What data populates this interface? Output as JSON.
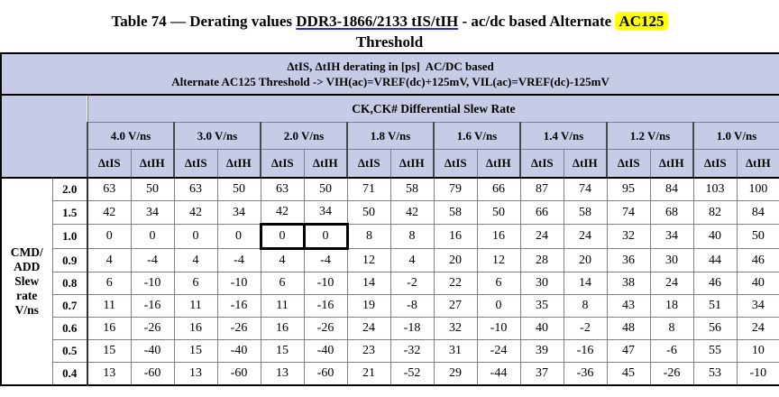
{
  "title": {
    "prefix": "Table 74 — Derating values ",
    "link": "DDR3-1866/2133 tIS/tIH",
    "middle": " - ac/dc based Alternate ",
    "highlight": "AC125",
    "line2": "Threshold"
  },
  "banner": {
    "line1": "ΔtIS, ΔtIH derating in [ps]  AC/DC based",
    "line2": "Alternate AC125 Threshold -> VIH(ac)=VREF(dc)+125mV, VIL(ac)=VREF(dc)-125mV"
  },
  "table": {
    "ck_header": "CK,CK# Differential Slew Rate",
    "slew_groups": [
      "4.0 V/ns",
      "3.0 V/ns",
      "2.0 V/ns",
      "1.8 V/ns",
      "1.6 V/ns",
      "1.4 V/ns",
      "1.2 V/ns",
      "1.0 V/ns"
    ],
    "sub_headers": [
      "ΔtIS",
      "ΔtIH"
    ],
    "row_header_lines": [
      "CMD/",
      "ADD",
      "Slew",
      "rate",
      "V/ns"
    ],
    "rows": [
      {
        "label": "2.0",
        "values": [
          63,
          50,
          63,
          50,
          63,
          50,
          71,
          58,
          79,
          66,
          87,
          74,
          95,
          84,
          103,
          100
        ]
      },
      {
        "label": "1.5",
        "values": [
          42,
          34,
          42,
          34,
          42,
          34,
          50,
          42,
          58,
          50,
          66,
          58,
          74,
          68,
          82,
          84
        ]
      },
      {
        "label": "1.0",
        "values": [
          0,
          0,
          0,
          0,
          0,
          0,
          8,
          8,
          16,
          16,
          24,
          24,
          32,
          34,
          40,
          50
        ],
        "boxed_columns": [
          4,
          5
        ]
      },
      {
        "label": "0.9",
        "values": [
          4,
          -4,
          4,
          -4,
          4,
          -4,
          12,
          4,
          20,
          12,
          28,
          20,
          36,
          30,
          44,
          46
        ]
      },
      {
        "label": "0.8",
        "values": [
          6,
          -10,
          6,
          -10,
          6,
          -10,
          14,
          -2,
          22,
          6,
          30,
          14,
          38,
          24,
          46,
          40
        ]
      },
      {
        "label": "0.7",
        "values": [
          11,
          -16,
          11,
          -16,
          11,
          -16,
          19,
          -8,
          27,
          0,
          35,
          8,
          43,
          18,
          51,
          34
        ]
      },
      {
        "label": "0.6",
        "values": [
          16,
          -26,
          16,
          -26,
          16,
          -26,
          24,
          -18,
          32,
          -10,
          40,
          -2,
          48,
          8,
          56,
          24
        ]
      },
      {
        "label": "0.5",
        "values": [
          15,
          -40,
          15,
          -40,
          15,
          -40,
          23,
          -32,
          31,
          -24,
          39,
          -16,
          47,
          -6,
          55,
          10
        ]
      },
      {
        "label": "0.4",
        "values": [
          13,
          -60,
          13,
          -60,
          13,
          -60,
          21,
          -52,
          29,
          -44,
          37,
          -36,
          45,
          -26,
          53,
          -10
        ]
      }
    ]
  },
  "colors": {
    "header_bg": "#c6cce6",
    "grid": "#7f7f8c",
    "group_divider": "#47474f",
    "outer_border": "#000000",
    "highlight": "#ffff00",
    "link_underline": "#2b2bd6",
    "cell_bg": "#ffffff"
  }
}
